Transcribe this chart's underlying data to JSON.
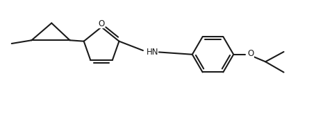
{
  "background_color": "#ffffff",
  "line_color": "#1a1a1a",
  "text_color": "#1a1a1a",
  "line_width": 1.5,
  "figsize": [
    4.55,
    1.91
  ],
  "dpi": 100,
  "xlim": [
    0,
    9.5
  ],
  "ylim": [
    0,
    4.0
  ]
}
